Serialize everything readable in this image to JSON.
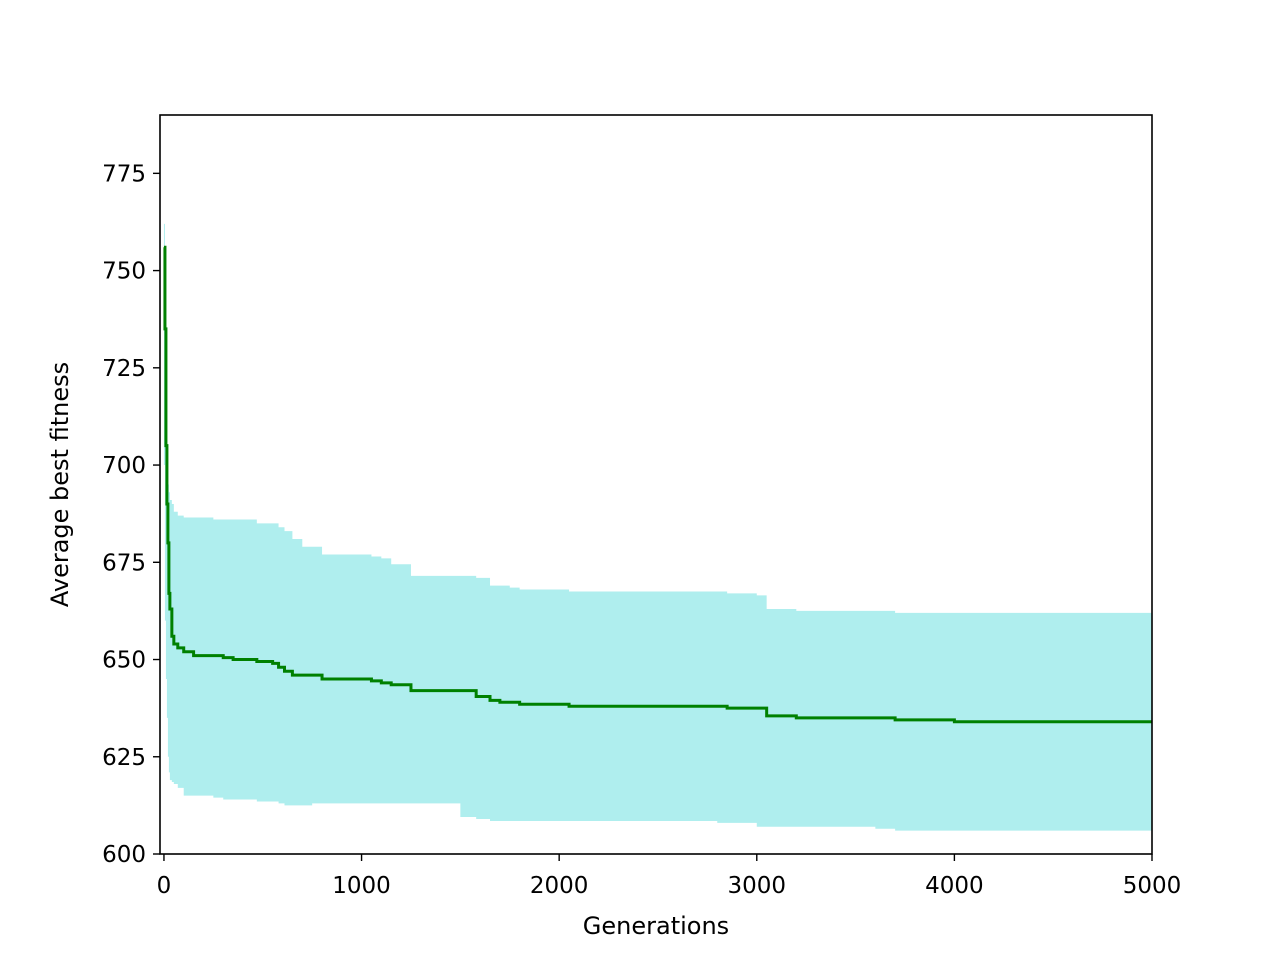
{
  "chart_data": {
    "type": "line",
    "title": "",
    "xlabel": "Generations",
    "ylabel": "Average best fitness",
    "xlim": [
      -20,
      5000
    ],
    "ylim": [
      600,
      790
    ],
    "x_ticks": [
      0,
      1000,
      2000,
      3000,
      4000,
      5000
    ],
    "x_tick_labels": [
      "0",
      "1000",
      "2000",
      "3000",
      "4000",
      "5000"
    ],
    "y_ticks": [
      600,
      625,
      650,
      675,
      700,
      725,
      750,
      775
    ],
    "y_tick_labels": [
      "600",
      "625",
      "650",
      "675",
      "700",
      "725",
      "750",
      "775"
    ],
    "grid": false,
    "legend": "none",
    "colors": {
      "mean_line": "#008000",
      "band_fill": "#afeeee",
      "axes": "#000000"
    },
    "series": [
      {
        "kind": "mean",
        "x": [
          0,
          5,
          10,
          15,
          20,
          25,
          30,
          40,
          50,
          70,
          100,
          150,
          250,
          300,
          350,
          400,
          470,
          550,
          580,
          610,
          650,
          700,
          750,
          800,
          950,
          1000,
          1050,
          1100,
          1150,
          1250,
          1300,
          1400,
          1500,
          1580,
          1650,
          1700,
          1750,
          1800,
          2000,
          2050,
          2100,
          2500,
          2800,
          2850,
          3000,
          3050,
          3200,
          3500,
          3600,
          3700,
          3900,
          4000,
          4500,
          5000
        ],
        "y": [
          756,
          735,
          705,
          690,
          680,
          667,
          663,
          656,
          654,
          653,
          652,
          651,
          651,
          650.5,
          650,
          650,
          649.5,
          649,
          648,
          647,
          646,
          646,
          646,
          645,
          645,
          645,
          644.5,
          644,
          643.5,
          642,
          642,
          642,
          642,
          640.5,
          639.5,
          639,
          639,
          638.5,
          638.5,
          638,
          638,
          638,
          638,
          637.5,
          637.5,
          635.5,
          635,
          635,
          635,
          634.5,
          634.5,
          634,
          634,
          634
        ]
      },
      {
        "kind": "band",
        "x": [
          0,
          5,
          10,
          15,
          20,
          25,
          30,
          40,
          50,
          70,
          100,
          150,
          250,
          300,
          350,
          400,
          470,
          550,
          580,
          610,
          650,
          700,
          750,
          800,
          950,
          1000,
          1050,
          1100,
          1150,
          1250,
          1300,
          1400,
          1500,
          1580,
          1650,
          1700,
          1750,
          1800,
          2000,
          2050,
          2100,
          2500,
          2800,
          2850,
          3000,
          3050,
          3200,
          3500,
          3600,
          3700,
          3900,
          4000,
          4500,
          5000
        ],
        "upper": [
          762,
          755,
          725,
          705,
          695,
          693,
          691,
          690,
          688,
          687,
          686.5,
          686.5,
          686,
          686,
          686,
          686,
          685,
          685,
          684,
          683,
          681,
          679,
          679,
          677,
          677,
          677,
          676.5,
          676,
          674.5,
          671.5,
          671.5,
          671.5,
          671.5,
          671,
          669,
          669,
          668.5,
          668,
          668,
          667.5,
          667.5,
          667.5,
          667.5,
          667,
          666.5,
          663,
          662.5,
          662.5,
          662.5,
          662,
          662,
          662,
          662,
          661.5
        ],
        "lower": [
          750,
          700,
          660,
          645,
          635,
          625,
          621,
          619,
          618.5,
          618,
          617,
          615,
          615,
          614.5,
          614,
          614,
          614,
          613.5,
          613.5,
          613,
          612.5,
          612.5,
          612.5,
          613,
          613,
          613,
          613,
          613,
          613,
          613,
          613,
          613,
          613,
          609.5,
          609,
          608.5,
          608.5,
          608.5,
          608.5,
          608.5,
          608.5,
          608.5,
          608.5,
          608,
          608,
          607,
          607,
          607,
          607,
          606.5,
          606,
          606,
          606,
          606
        ]
      }
    ]
  }
}
